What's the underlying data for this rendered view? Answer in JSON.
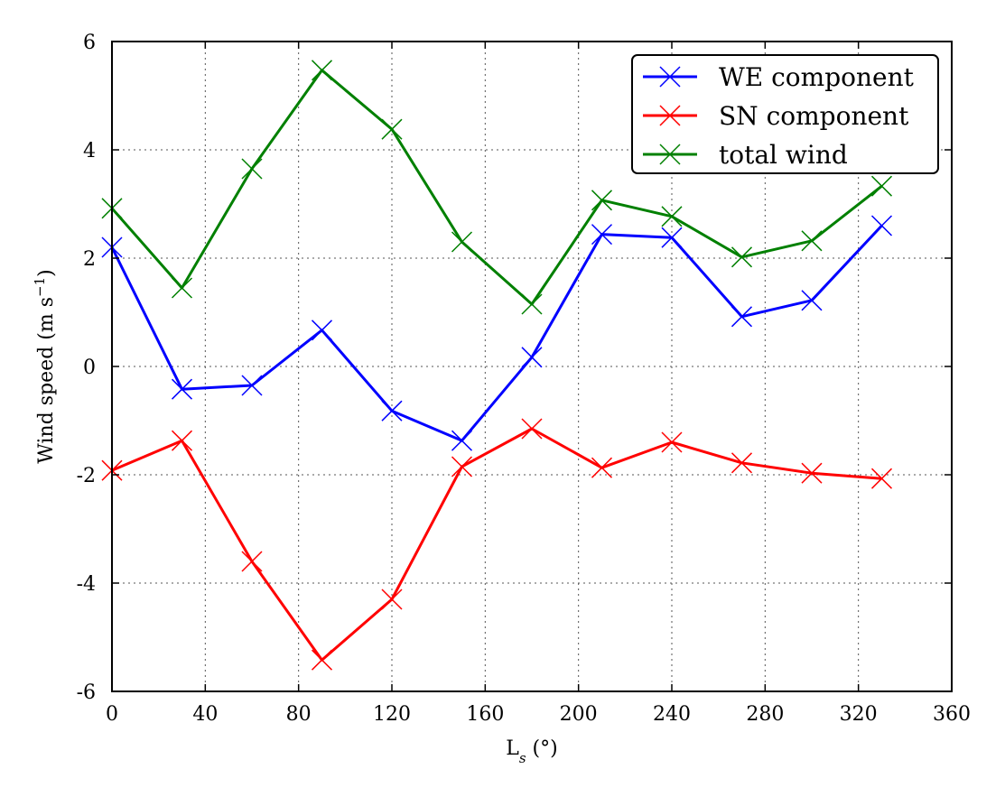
{
  "chart_data": {
    "type": "line",
    "x": [
      0,
      30,
      60,
      90,
      120,
      150,
      180,
      210,
      240,
      270,
      300,
      330
    ],
    "series": [
      {
        "name": "WE component",
        "color": "#0000ff",
        "marker": "x",
        "values": [
          2.2,
          -0.42,
          -0.35,
          0.67,
          -0.82,
          -1.37,
          0.17,
          2.44,
          2.38,
          0.92,
          1.22,
          2.6
        ]
      },
      {
        "name": "SN component",
        "color": "#ff0000",
        "marker": "x",
        "values": [
          -1.92,
          -1.37,
          -3.6,
          -5.42,
          -4.3,
          -1.85,
          -1.15,
          -1.87,
          -1.4,
          -1.78,
          -1.97,
          -2.07
        ]
      },
      {
        "name": "total wind",
        "color": "#008000",
        "marker": "x",
        "values": [
          2.92,
          1.45,
          3.65,
          5.47,
          4.38,
          2.3,
          1.15,
          3.07,
          2.77,
          2.02,
          2.32,
          3.33
        ]
      }
    ],
    "xlim": [
      0,
      360
    ],
    "ylim": [
      -6,
      6
    ],
    "xticks": [
      "0",
      "40",
      "80",
      "120",
      "160",
      "200",
      "240",
      "280",
      "320",
      "360"
    ],
    "yticks": [
      "-6",
      "-4",
      "-2",
      "0",
      "2",
      "4",
      "6"
    ],
    "xlabel_main": "L",
    "xlabel_sub": "s",
    "xlabel_rest": " (°)",
    "ylabel_main": "Wind speed (m s",
    "ylabel_sup": "−1",
    "ylabel_end": ")",
    "grid": true,
    "legend_position": "top-right"
  }
}
